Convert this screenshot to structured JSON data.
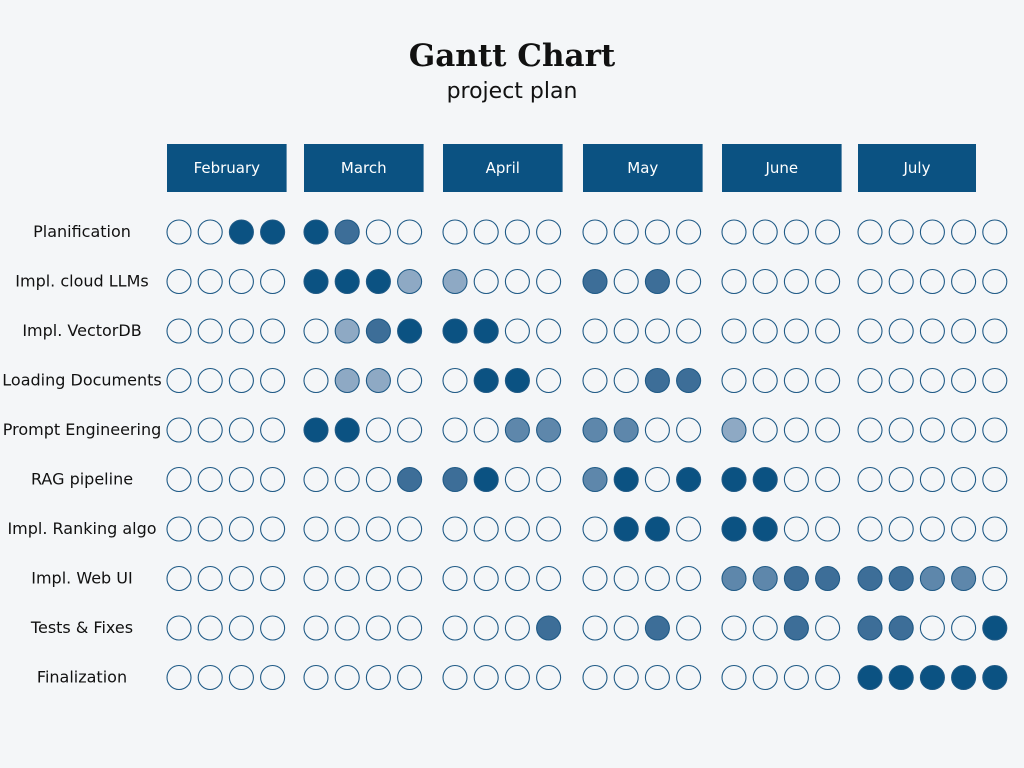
{
  "chart_data": {
    "type": "gantt",
    "title": "Gantt Chart",
    "subtitle": "project plan",
    "months": [
      {
        "label": "February",
        "weeks": 4
      },
      {
        "label": "March",
        "weeks": 4
      },
      {
        "label": "April",
        "weeks": 4
      },
      {
        "label": "May",
        "weeks": 4
      },
      {
        "label": "June",
        "weeks": 4
      },
      {
        "label": "July",
        "weeks": 5
      }
    ],
    "intensity_colors": [
      "#f4f6f8",
      "#8ea9c4",
      "#5e87ab",
      "#3d6e98",
      "#0b5282"
    ],
    "tasks": [
      {
        "name": "Planification",
        "values": [
          0,
          0,
          4,
          4,
          4,
          3,
          0,
          0,
          0,
          0,
          0,
          0,
          0,
          0,
          0,
          0,
          0,
          0,
          0,
          0,
          0,
          0,
          0,
          0,
          0
        ]
      },
      {
        "name": "Impl. cloud LLMs",
        "values": [
          0,
          0,
          0,
          0,
          4,
          4,
          4,
          1,
          1,
          0,
          0,
          0,
          3,
          0,
          3,
          0,
          0,
          0,
          0,
          0,
          0,
          0,
          0,
          0,
          0
        ]
      },
      {
        "name": "Impl. VectorDB",
        "values": [
          0,
          0,
          0,
          0,
          0,
          1,
          3,
          4,
          4,
          4,
          0,
          0,
          0,
          0,
          0,
          0,
          0,
          0,
          0,
          0,
          0,
          0,
          0,
          0,
          0
        ]
      },
      {
        "name": "Loading Documents",
        "values": [
          0,
          0,
          0,
          0,
          0,
          1,
          1,
          0,
          0,
          4,
          4,
          0,
          0,
          0,
          3,
          3,
          0,
          0,
          0,
          0,
          0,
          0,
          0,
          0,
          0
        ]
      },
      {
        "name": "Prompt Engineering",
        "values": [
          0,
          0,
          0,
          0,
          4,
          4,
          0,
          0,
          0,
          0,
          2,
          2,
          2,
          2,
          0,
          0,
          1,
          0,
          0,
          0,
          0,
          0,
          0,
          0,
          0
        ]
      },
      {
        "name": "RAG pipeline",
        "values": [
          0,
          0,
          0,
          0,
          0,
          0,
          0,
          3,
          3,
          4,
          0,
          0,
          2,
          4,
          0,
          4,
          4,
          4,
          0,
          0,
          0,
          0,
          0,
          0,
          0
        ]
      },
      {
        "name": "Impl. Ranking algo",
        "values": [
          0,
          0,
          0,
          0,
          0,
          0,
          0,
          0,
          0,
          0,
          0,
          0,
          0,
          4,
          4,
          0,
          4,
          4,
          0,
          0,
          0,
          0,
          0,
          0,
          0
        ]
      },
      {
        "name": "Impl. Web UI",
        "values": [
          0,
          0,
          0,
          0,
          0,
          0,
          0,
          0,
          0,
          0,
          0,
          0,
          0,
          0,
          0,
          0,
          2,
          2,
          3,
          3,
          3,
          3,
          2,
          2,
          0
        ]
      },
      {
        "name": "Tests & Fixes",
        "values": [
          0,
          0,
          0,
          0,
          0,
          0,
          0,
          0,
          0,
          0,
          0,
          3,
          0,
          0,
          3,
          0,
          0,
          0,
          3,
          0,
          3,
          3,
          0,
          0,
          4
        ]
      },
      {
        "name": "Finalization",
        "values": [
          0,
          0,
          0,
          0,
          0,
          0,
          0,
          0,
          0,
          0,
          0,
          0,
          0,
          0,
          0,
          0,
          0,
          0,
          0,
          0,
          4,
          4,
          4,
          4,
          4
        ]
      }
    ]
  }
}
